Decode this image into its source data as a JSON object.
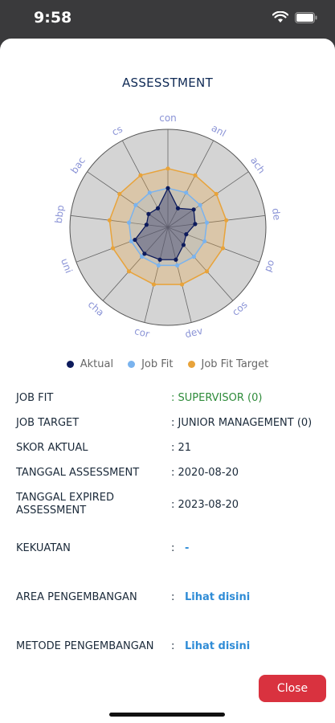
{
  "status": {
    "time": "9:58",
    "icons": [
      "wifi-icon",
      "battery-icon"
    ]
  },
  "page": {
    "title": "ASSESSTMENT"
  },
  "chart_data": {
    "type": "radar",
    "axes": [
      "con",
      "anl",
      "ach",
      "de",
      "po",
      "cos",
      "dev",
      "cor",
      "cha",
      "uni",
      "bbp",
      "bac",
      "cs"
    ],
    "rings": 5,
    "series": [
      {
        "name": "Aktual",
        "color": "#0d1b5c",
        "values": [
          2,
          1.1,
          1.6,
          1.4,
          1,
          1.2,
          1.7,
          1.7,
          1.8,
          1.8,
          1.1,
          1.2,
          1.1
        ]
      },
      {
        "name": "Job Fit",
        "color": "#7ab3ee",
        "values": [
          2,
          2,
          2,
          2,
          2,
          2,
          2,
          2,
          2,
          2,
          2,
          2,
          2
        ]
      },
      {
        "name": "Job Fit Target",
        "color": "#e8a33a",
        "values": [
          3,
          3,
          3,
          3,
          3,
          3,
          3,
          3,
          3,
          3,
          3,
          3,
          3
        ]
      }
    ],
    "max": 5
  },
  "legend": {
    "items": [
      {
        "label": "Aktual",
        "color": "#0d1b5c"
      },
      {
        "label": "Job Fit",
        "color": "#7ab3ee"
      },
      {
        "label": "Job Fit Target",
        "color": "#e8a33a"
      }
    ]
  },
  "info": {
    "job_fit": {
      "label": "JOB FIT",
      "value": ": SUPERVISOR (0)"
    },
    "job_target": {
      "label": "JOB TARGET",
      "value": ": JUNIOR MANAGEMENT (0)"
    },
    "skor_aktual": {
      "label": "SKOR AKTUAL",
      "value": ": 21"
    },
    "tanggal_assessment": {
      "label": "TANGGAL ASSESSMENT",
      "value": ": 2020-08-20"
    },
    "tanggal_expired": {
      "label_1": "TANGGAL EXPIRED",
      "label_2": "ASSESSMENT",
      "value": ": 2023-08-20"
    },
    "kekuatan": {
      "label": "KEKUATAN",
      "colon": ":",
      "value": "-"
    },
    "area_pengembangan": {
      "label": "AREA PENGEMBANGAN",
      "colon": ":",
      "value": "Lihat disini"
    },
    "metode_pengembangan": {
      "label": "METODE PENGEMBANGAN",
      "colon": ":",
      "value": "Lihat disini"
    }
  },
  "buttons": {
    "close": "Close"
  }
}
